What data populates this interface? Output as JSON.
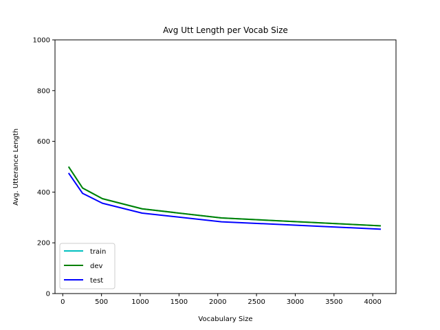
{
  "chart_data": {
    "type": "line",
    "title": "Avg Utt Length per Vocab Size",
    "xlabel": "Vocabulary Size",
    "ylabel": "Avg. Utterance Length",
    "xlim": [
      -100,
      4300
    ],
    "ylim": [
      0,
      1000
    ],
    "x_ticks": [
      0,
      500,
      1000,
      1500,
      2000,
      2500,
      3000,
      3500,
      4000
    ],
    "x_tick_labels": [
      "0",
      "500",
      "1000",
      "1500",
      "2000",
      "2500",
      "3000",
      "3500",
      "4000"
    ],
    "y_ticks": [
      0,
      200,
      400,
      600,
      800,
      1000
    ],
    "y_tick_labels": [
      "0",
      "200",
      "400",
      "600",
      "800",
      "1000"
    ],
    "grid": false,
    "legend_position": "lower-left",
    "x": [
      80,
      256,
      512,
      1024,
      2048,
      4096
    ],
    "series": [
      {
        "name": "train",
        "color": "#00bfbf",
        "values": [
          498,
          416,
          374,
          334,
          298,
          267
        ]
      },
      {
        "name": "dev",
        "color": "#008000",
        "values": [
          498,
          416,
          374,
          334,
          298,
          267
        ]
      },
      {
        "name": "test",
        "color": "#0000ff",
        "values": [
          473,
          395,
          356,
          317,
          283,
          254
        ]
      }
    ]
  }
}
